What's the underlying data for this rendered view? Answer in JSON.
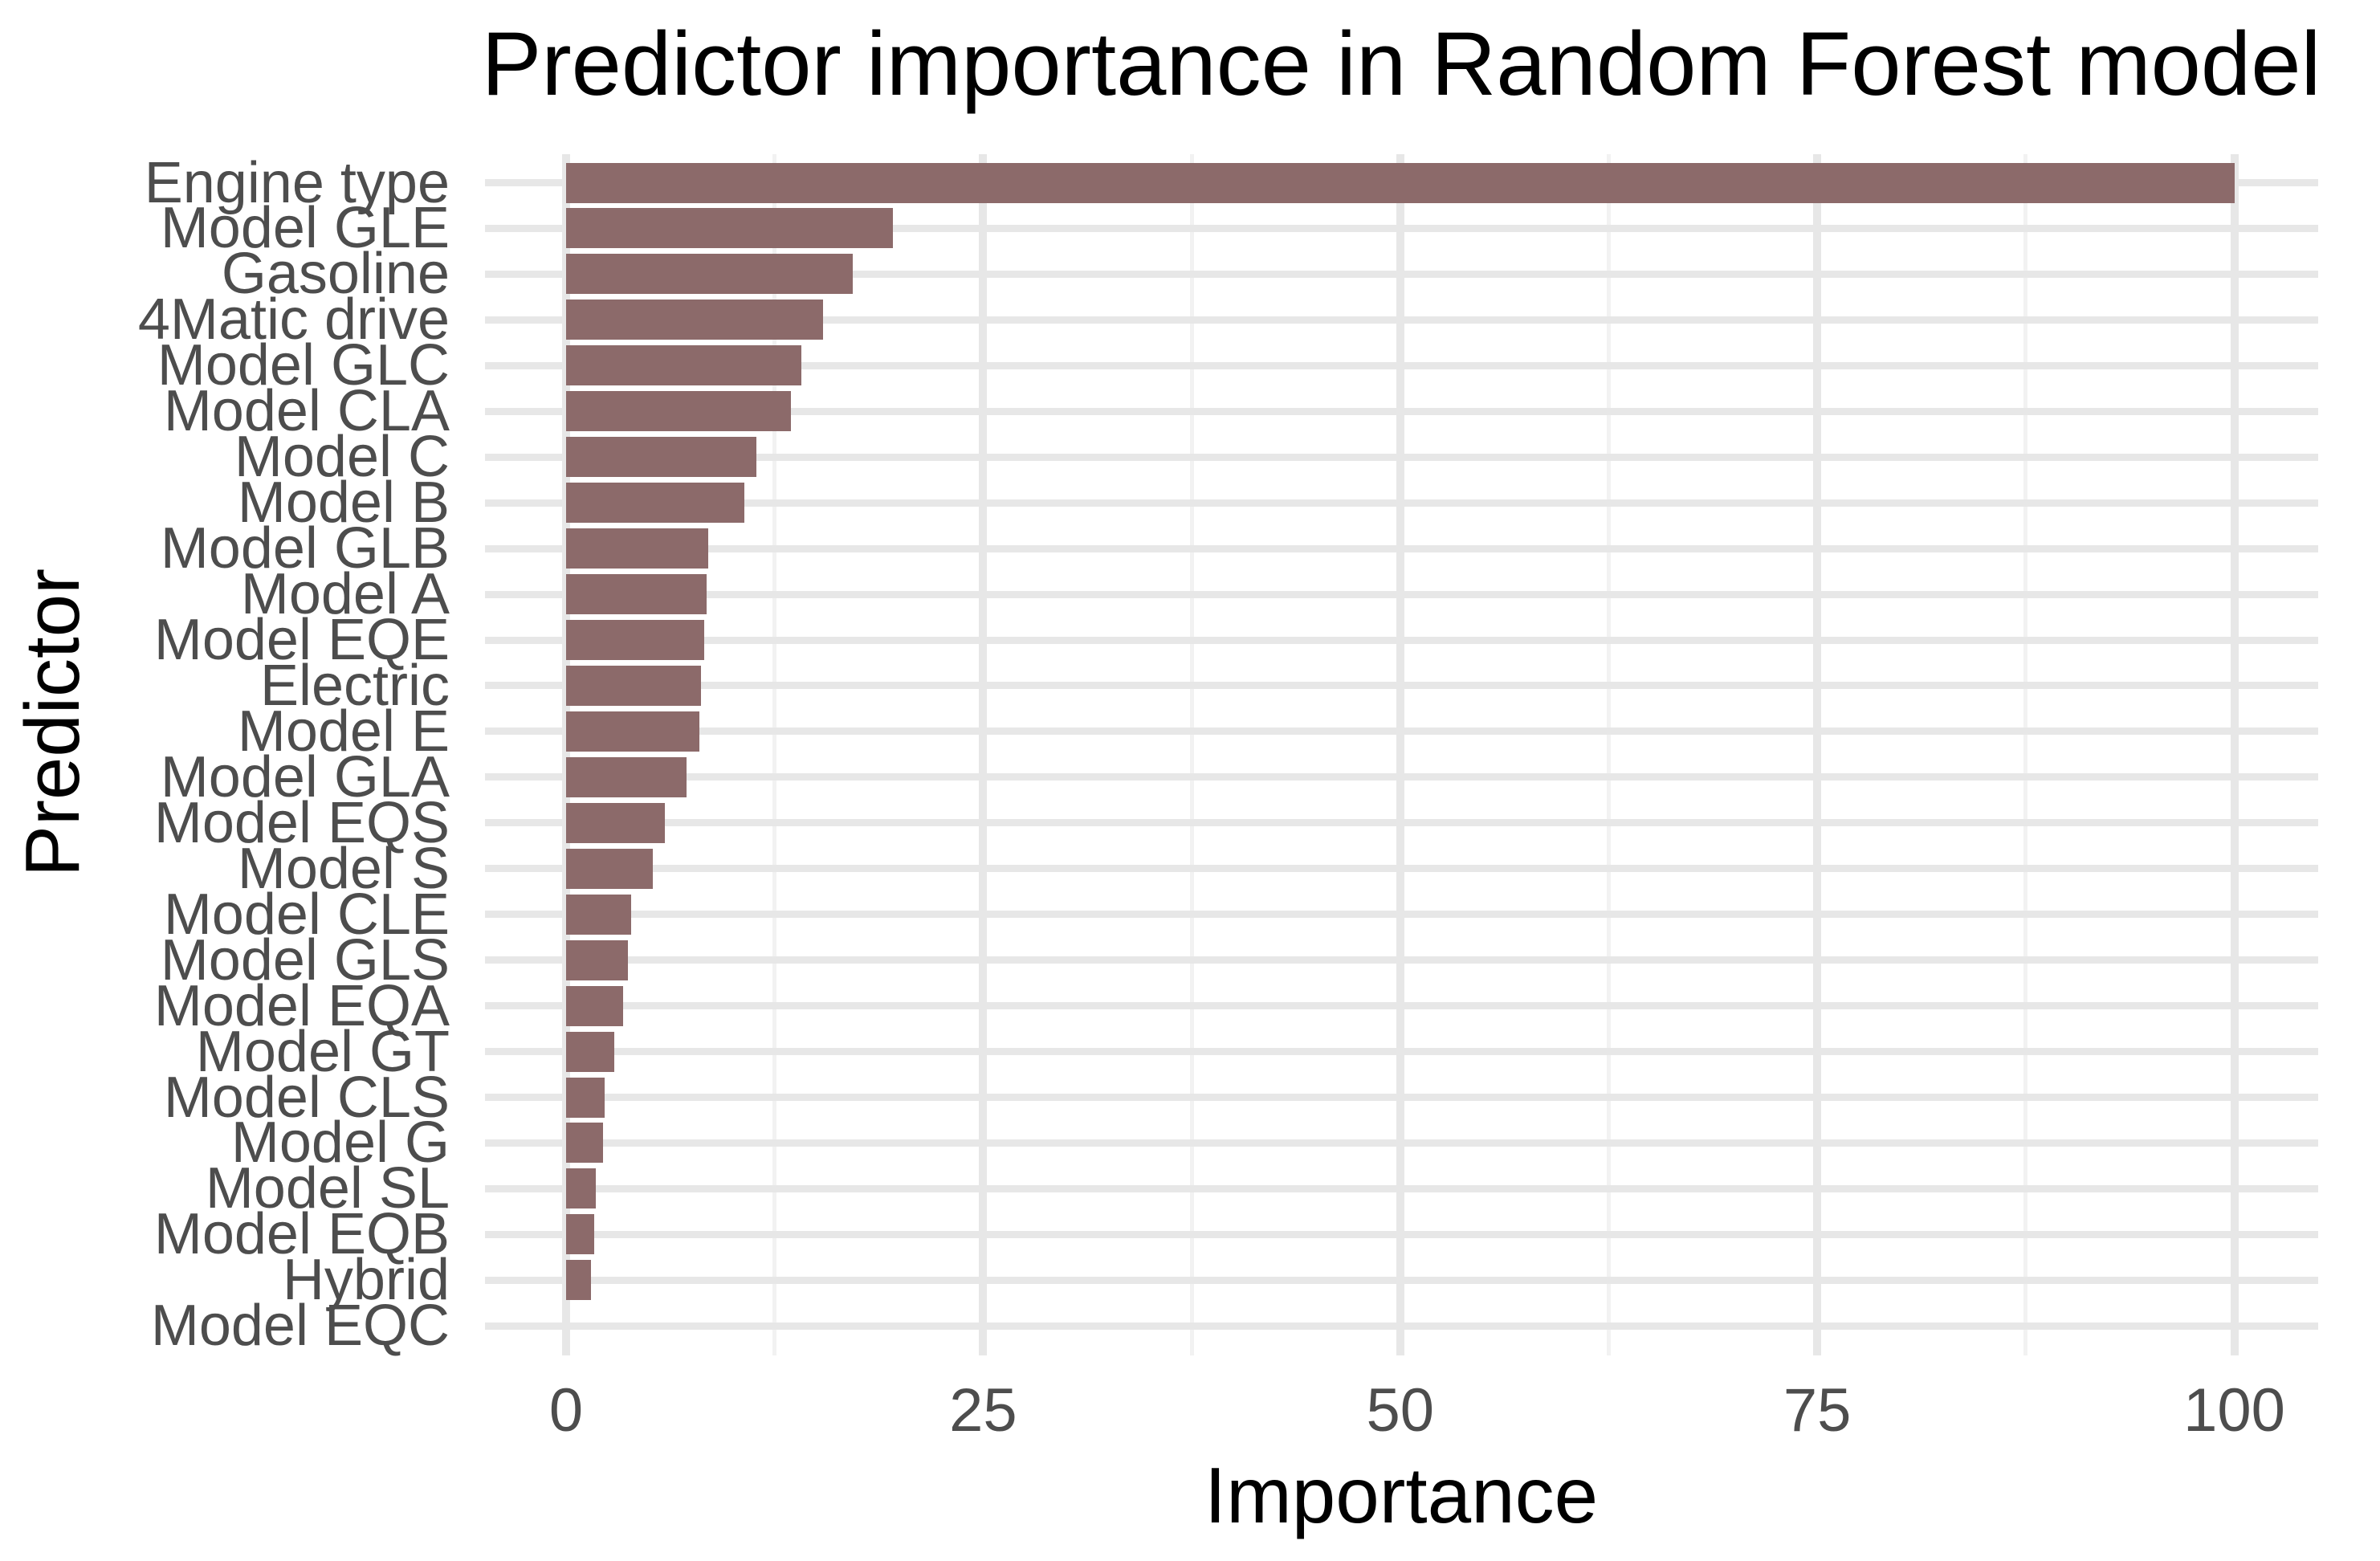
{
  "title": "Predictor importance in Random Forest model",
  "chart_data": {
    "type": "bar",
    "orientation": "horizontal",
    "title": "Predictor importance in Random Forest model",
    "xlabel": "Importance",
    "ylabel": "Predictor",
    "xlim": [
      0,
      100
    ],
    "x_major_ticks": [
      0,
      25,
      50,
      75,
      100
    ],
    "x_tick_labels": [
      "0",
      "25",
      "50",
      "75",
      "100"
    ],
    "x_minor_ticks": [
      12.5,
      37.5,
      62.5,
      87.5
    ],
    "grid": true,
    "legend": false,
    "categories": [
      "Engine type",
      "Model GLE",
      "Gasoline",
      "4Matic drive",
      "Model GLC",
      "Model CLA",
      "Model C",
      "Model B",
      "Model GLB",
      "Model A",
      "Model EQE",
      "Electric",
      "Model E",
      "Model GLA",
      "Model EQS",
      "Model S",
      "Model CLE",
      "Model GLS",
      "Model EQA",
      "Model GT",
      "Model CLS",
      "Model G",
      "Model SL",
      "Model EQB",
      "Hybrid",
      "Model EQC"
    ],
    "values": [
      100,
      19.6,
      17.2,
      15.4,
      14.1,
      13.5,
      11.4,
      10.7,
      8.5,
      8.4,
      8.3,
      8.1,
      8.0,
      7.2,
      5.9,
      5.2,
      3.9,
      3.7,
      3.4,
      2.9,
      2.3,
      2.2,
      1.8,
      1.7,
      1.5,
      0
    ]
  },
  "colors": {
    "bar_fill": "#8C6A6A",
    "grid_major": "#E7E7E7",
    "grid_minor": "#F2F2F2",
    "tick_text": "#4D4D4D",
    "title_text": "#000000",
    "background": "#FFFFFF"
  }
}
